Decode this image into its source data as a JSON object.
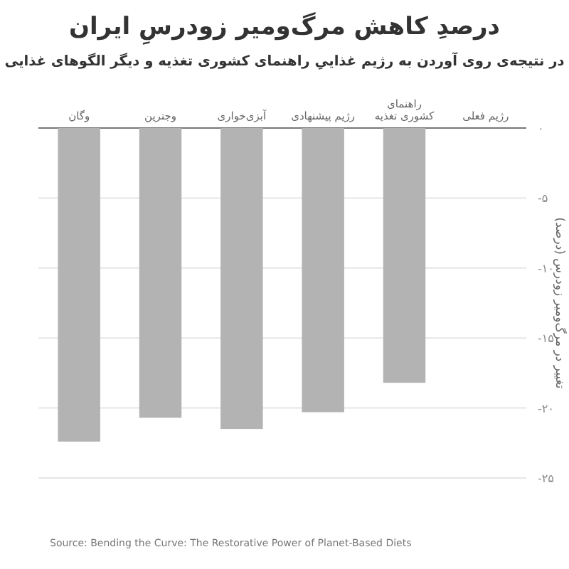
{
  "chart_data": {
    "type": "bar",
    "title": "درصدِ کاهش مرگ‌ومیر زودرسِ ایران",
    "subtitle": "در نتیجه‌ی روی آوردن به رژیم غذاییِ راهنمای کشوری تغذیه و دیگر الگوهای غذایی",
    "ylabel": "تغییر در مرگ‌ومیر زودرس (درصد)",
    "categories": [
      "وگان",
      "وجترین",
      "آبزی‌خواری",
      "رژیم پیشنهادی",
      "راهنمای\nکشوری تغذیه",
      "رژیم فعلی"
    ],
    "values": [
      -22.4,
      -20.7,
      -21.5,
      -20.3,
      -18.2,
      0
    ],
    "color": "#b3b3b3",
    "ylim": [
      -25,
      0
    ],
    "yticks": [
      {
        "value": 0,
        "label": "۰"
      },
      {
        "value": -5,
        "label": "-۵"
      },
      {
        "value": -10,
        "label": "-۱۰"
      },
      {
        "value": -15,
        "label": "-۱۵"
      },
      {
        "value": -20,
        "label": "-۲۰"
      },
      {
        "value": -25,
        "label": "-۲۵"
      }
    ],
    "grid": "y",
    "annotations": [
      "Source: Bending the Curve: The Restorative Power of Planet-Based Diets"
    ]
  }
}
